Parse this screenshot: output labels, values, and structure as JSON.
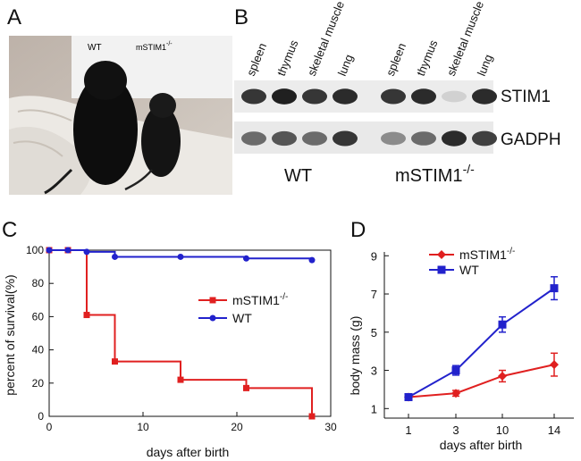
{
  "panels": {
    "a": "A",
    "b": "B",
    "c": "C",
    "d": "D"
  },
  "photo": {
    "label_wt": "WT",
    "label_mutant_base": "mSTIM1",
    "label_mutant_sup": "-/-"
  },
  "blot": {
    "lane_labels": [
      "spleen",
      "thymus",
      "skeletal muscle",
      "lung",
      "spleen",
      "thymus",
      "skeletal muscle",
      "lung"
    ],
    "row_labels": [
      "STIM1",
      "GADPH"
    ],
    "group_wt": "WT",
    "group_mutant_base": "mSTIM1",
    "group_mutant_sup": "-/-",
    "band_intensity": {
      "STIM1": [
        0.85,
        0.95,
        0.85,
        0.9,
        0.85,
        0.9,
        0.12,
        0.9
      ],
      "GADPH": [
        0.6,
        0.7,
        0.6,
        0.85,
        0.45,
        0.6,
        0.9,
        0.8
      ]
    }
  },
  "chart_data": [
    {
      "type": "line",
      "step": true,
      "xlabel": "days after birth",
      "ylabel": "percent of survival(%)",
      "xlim": [
        0,
        30
      ],
      "ylim": [
        0,
        100
      ],
      "xticks": [
        0,
        10,
        20,
        30
      ],
      "yticks": [
        0,
        20,
        40,
        60,
        80,
        100
      ],
      "legend_position": "center-right",
      "series": [
        {
          "name_base": "mSTIM1",
          "name_sup": "-/-",
          "color": "#e02020",
          "marker": "square",
          "x": [
            0,
            2,
            4,
            7,
            14,
            21,
            28
          ],
          "y": [
            100,
            100,
            61,
            33,
            22,
            17,
            0
          ]
        },
        {
          "name": "WT",
          "color": "#2222cc",
          "marker": "circle",
          "x": [
            0,
            2,
            4,
            7,
            14,
            21,
            28
          ],
          "y": [
            100,
            100,
            99,
            96,
            96,
            95,
            94
          ]
        }
      ]
    },
    {
      "type": "line",
      "xlabel": "days after birth",
      "ylabel": "body mass (g)",
      "categories": [
        "1",
        "3",
        "10",
        "14"
      ],
      "ylim": [
        0,
        9
      ],
      "yticks": [
        1,
        3,
        5,
        7,
        9
      ],
      "legend_position": "top-left",
      "series": [
        {
          "name_base": "mSTIM1",
          "name_sup": "-/-",
          "color": "#e02020",
          "marker": "diamond",
          "values": [
            1.6,
            1.8,
            2.7,
            3.3
          ],
          "errors": [
            0.1,
            0.15,
            0.3,
            0.6
          ]
        },
        {
          "name": "WT",
          "color": "#2222cc",
          "marker": "square",
          "values": [
            1.6,
            3.0,
            5.4,
            7.3
          ],
          "errors": [
            0.1,
            0.25,
            0.4,
            0.6
          ]
        }
      ]
    }
  ]
}
